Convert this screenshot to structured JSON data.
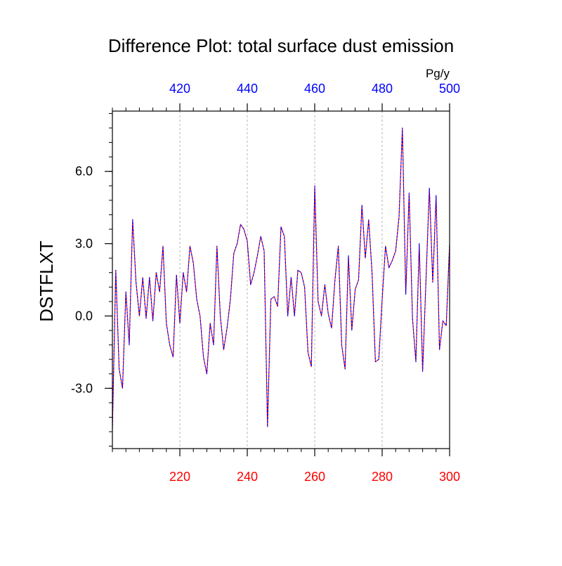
{
  "chart_data": {
    "type": "line",
    "title": "Difference Plot: total surface dust emission",
    "ylabel": "DSTFLXT",
    "units": "Pg/y",
    "xlim": [
      200,
      300
    ],
    "ylim": [
      -5.5,
      8.5
    ],
    "top_xlim": [
      400,
      500
    ],
    "bottom_ticks": [
      {
        "value": 220,
        "label": "220"
      },
      {
        "value": 240,
        "label": "240"
      },
      {
        "value": 260,
        "label": "260"
      },
      {
        "value": 280,
        "label": "280"
      },
      {
        "value": 300,
        "label": "300"
      }
    ],
    "top_ticks": [
      {
        "value": 420,
        "label": "420"
      },
      {
        "value": 440,
        "label": "440"
      },
      {
        "value": 460,
        "label": "460"
      },
      {
        "value": 480,
        "label": "480"
      },
      {
        "value": 500,
        "label": "500"
      }
    ],
    "y_ticks": [
      {
        "value": -3.0,
        "label": "-3.0"
      },
      {
        "value": 0.0,
        "label": "0.0"
      },
      {
        "value": 3.0,
        "label": "3.0"
      },
      {
        "value": 6.0,
        "label": "6.0"
      }
    ],
    "colors": {
      "bottom_axis": "#ff0000",
      "top_axis": "#0000ff",
      "series_red": "#ff0000",
      "series_blue": "#0000ff",
      "grid": "#b4b4b4"
    },
    "series": [
      {
        "name": "bottom-axis series",
        "color": "#ff0000",
        "x": [
          200,
          201,
          202,
          203,
          204,
          205,
          206,
          207,
          208,
          209,
          210,
          211,
          212,
          213,
          214,
          215,
          216,
          217,
          218,
          219,
          220,
          221,
          222,
          223,
          224,
          225,
          226,
          227,
          228,
          229,
          230,
          231,
          232,
          233,
          234,
          235,
          236,
          237,
          238,
          239,
          240,
          241,
          242,
          243,
          244,
          245,
          246,
          247,
          248,
          249,
          250,
          251,
          252,
          253,
          254,
          255,
          256,
          257,
          258,
          259,
          260,
          261,
          262,
          263,
          264,
          265,
          266,
          267,
          268,
          269,
          270,
          271,
          272,
          273,
          274,
          275,
          276,
          277,
          278,
          279,
          280,
          281,
          282,
          283,
          284,
          285,
          286,
          287,
          288,
          289,
          290,
          291,
          292,
          293,
          294,
          295,
          296,
          297,
          298,
          299,
          300
        ],
        "values": [
          -4.7,
          1.9,
          -2.2,
          -3.0,
          1.0,
          -1.2,
          4.0,
          1.4,
          0.0,
          1.6,
          -0.1,
          1.6,
          -0.2,
          1.8,
          1.0,
          2.9,
          -0.3,
          -1.2,
          -1.7,
          1.7,
          -0.3,
          1.8,
          1.0,
          2.9,
          2.2,
          0.7,
          0.0,
          -1.7,
          -2.4,
          -0.3,
          -1.2,
          2.9,
          0.0,
          -1.4,
          -0.5,
          0.7,
          2.6,
          3.0,
          3.8,
          3.6,
          3.1,
          1.3,
          1.8,
          2.5,
          3.3,
          2.7,
          -4.6,
          0.7,
          0.8,
          0.4,
          3.7,
          3.3,
          0.0,
          1.6,
          0.0,
          1.9,
          1.8,
          1.2,
          -1.5,
          -2.1,
          5.4,
          0.6,
          0.0,
          1.3,
          0.1,
          -0.5,
          1.5,
          2.9,
          -1.2,
          -2.2,
          2.5,
          -0.6,
          1.1,
          1.5,
          4.6,
          2.4,
          4.0,
          1.8,
          -1.9,
          -1.8,
          0.7,
          2.9,
          2.0,
          2.3,
          2.7,
          4.1,
          7.8,
          0.9,
          5.1,
          -0.1,
          -1.9,
          3.0,
          -2.3,
          1.5,
          5.3,
          1.4,
          5.0,
          -1.4,
          -0.2,
          -0.4,
          3.0
        ]
      },
      {
        "name": "top-axis series",
        "color": "#0000ff",
        "x": [
          400,
          401,
          402,
          403,
          404,
          405,
          406,
          407,
          408,
          409,
          410,
          411,
          412,
          413,
          414,
          415,
          416,
          417,
          418,
          419,
          420,
          421,
          422,
          423,
          424,
          425,
          426,
          427,
          428,
          429,
          430,
          431,
          432,
          433,
          434,
          435,
          436,
          437,
          438,
          439,
          440,
          441,
          442,
          443,
          444,
          445,
          446,
          447,
          448,
          449,
          450,
          451,
          452,
          453,
          454,
          455,
          456,
          457,
          458,
          459,
          460,
          461,
          462,
          463,
          464,
          465,
          466,
          467,
          468,
          469,
          470,
          471,
          472,
          473,
          474,
          475,
          476,
          477,
          478,
          479,
          480,
          481,
          482,
          483,
          484,
          485,
          486,
          487,
          488,
          489,
          490,
          491,
          492,
          493,
          494,
          495,
          496,
          497,
          498,
          499,
          500
        ],
        "values": [
          -4.7,
          1.9,
          -2.2,
          -3.0,
          1.0,
          -1.2,
          4.0,
          1.4,
          0.0,
          1.6,
          -0.1,
          1.6,
          -0.2,
          1.8,
          1.0,
          2.9,
          -0.3,
          -1.2,
          -1.7,
          1.7,
          -0.3,
          1.8,
          1.0,
          2.9,
          2.2,
          0.7,
          0.0,
          -1.7,
          -2.4,
          -0.3,
          -1.2,
          2.9,
          0.0,
          -1.4,
          -0.5,
          0.7,
          2.6,
          3.0,
          3.8,
          3.6,
          3.1,
          1.3,
          1.8,
          2.5,
          3.3,
          2.7,
          -4.6,
          0.7,
          0.8,
          0.4,
          3.7,
          3.3,
          0.0,
          1.6,
          0.0,
          1.9,
          1.8,
          1.2,
          -1.5,
          -2.1,
          5.4,
          0.6,
          0.0,
          1.3,
          0.1,
          -0.5,
          1.5,
          2.9,
          -1.2,
          -2.2,
          2.5,
          -0.6,
          1.1,
          1.5,
          4.6,
          2.4,
          4.0,
          1.8,
          -1.9,
          -1.8,
          0.7,
          2.9,
          2.0,
          2.3,
          2.7,
          4.1,
          7.8,
          0.9,
          5.1,
          -0.1,
          -1.9,
          3.0,
          -2.3,
          1.5,
          5.3,
          1.4,
          5.0,
          -1.4,
          -0.2,
          -0.4,
          3.0
        ]
      }
    ]
  }
}
